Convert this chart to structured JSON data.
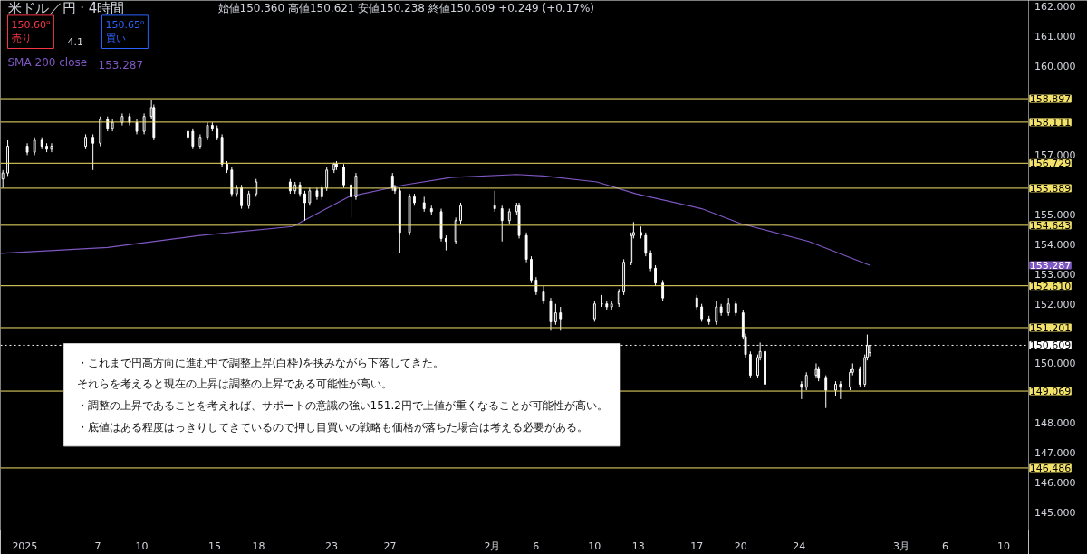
{
  "chart_data": {
    "type": "candlestick",
    "title": "米ドル／円 · 4時間",
    "subtitle": "始値150.360 高値150.621 安値150.238 終値150.609 +0.249 (+0.17%)",
    "color": "#ffffff",
    "legend": "top left",
    "grid": false,
    "xlim": [
      "2024-12-31T08:00",
      "2025-03-11T17:00"
    ],
    "ylim": [
      144.4,
      162.2
    ],
    "xticks": [
      {
        "value": "2025-01-02",
        "label": "2025"
      },
      {
        "value": "2025-01-07",
        "label": "7"
      },
      {
        "value": "2025-01-10",
        "label": "10"
      },
      {
        "value": "2025-01-15",
        "label": "15"
      },
      {
        "value": "2025-01-18",
        "label": "18"
      },
      {
        "value": "2025-01-23",
        "label": "23"
      },
      {
        "value": "2025-01-27",
        "label": "27"
      },
      {
        "value": "2025-02-03",
        "label": "2月"
      },
      {
        "value": "2025-02-06",
        "label": "6"
      },
      {
        "value": "2025-02-10",
        "label": "10"
      },
      {
        "value": "2025-02-13",
        "label": "13"
      },
      {
        "value": "2025-02-17",
        "label": "17"
      },
      {
        "value": "2025-02-20",
        "label": "20"
      },
      {
        "value": "2025-02-24",
        "label": "24"
      },
      {
        "value": "2025-03-03",
        "label": "3月"
      },
      {
        "value": "2025-03-06",
        "label": "6"
      },
      {
        "value": "2025-03-10",
        "label": "10"
      }
    ],
    "yticks": [
      {
        "value": 145,
        "label": "145.000"
      },
      {
        "value": 146,
        "label": "146.000"
      },
      {
        "value": 147,
        "label": "147.000"
      },
      {
        "value": 148,
        "label": "148.000"
      },
      {
        "value": 150,
        "label": "150.000"
      },
      {
        "value": 152,
        "label": "152.000"
      },
      {
        "value": 153,
        "label": "153.000"
      },
      {
        "value": 154,
        "label": "154.000"
      },
      {
        "value": 155,
        "label": "155.000"
      },
      {
        "value": 157,
        "label": "157.000"
      },
      {
        "value": 160,
        "label": "160.000"
      },
      {
        "value": 161,
        "label": "161.000"
      },
      {
        "value": 162,
        "label": "162.000"
      }
    ],
    "x": [
      "2024-12-31T12:00",
      "2024-12-31T20:00",
      "2025-01-02T04:00",
      "2025-01-02T16:00",
      "2025-01-03T04:00",
      "2025-01-03T12:00",
      "2025-01-03T20:00",
      "2025-01-06T04:00",
      "2025-01-06T16:00",
      "2025-01-07T04:00",
      "2025-01-07T16:00",
      "2025-01-08T00:00",
      "2025-01-08T16:00",
      "2025-01-09T04:00",
      "2025-01-09T16:00",
      "2025-01-10T04:00",
      "2025-01-10T16:00",
      "2025-01-10T20:00",
      "2025-01-13T04:00",
      "2025-01-13T12:00",
      "2025-01-14T00:00",
      "2025-01-14T12:00",
      "2025-01-14T20:00",
      "2025-01-15T04:00",
      "2025-01-15T12:00",
      "2025-01-15T20:00",
      "2025-01-16T04:00",
      "2025-01-16T12:00",
      "2025-01-16T20:00",
      "2025-01-17T08:00",
      "2025-01-17T20:00",
      "2025-01-20T04:00",
      "2025-01-20T12:00",
      "2025-01-20T20:00",
      "2025-01-21T04:00",
      "2025-01-21T12:00",
      "2025-01-22T00:00",
      "2025-01-22T08:00",
      "2025-01-22T16:00",
      "2025-01-23T04:00",
      "2025-01-23T08:00",
      "2025-01-23T20:00",
      "2025-01-24T08:00",
      "2025-01-24T16:00",
      "2025-01-27T04:00",
      "2025-01-27T08:00",
      "2025-01-27T16:00",
      "2025-01-28T08:00",
      "2025-01-28T16:00",
      "2025-01-29T08:00",
      "2025-01-29T20:00",
      "2025-01-30T12:00",
      "2025-01-30T20:00",
      "2025-01-31T12:00",
      "2025-01-31T20:00",
      "2025-02-03T04:00",
      "2025-02-03T16:00",
      "2025-02-04T04:00",
      "2025-02-04T16:00",
      "2025-02-04T20:00",
      "2025-02-05T08:00",
      "2025-02-05T16:00",
      "2025-02-06T00:00",
      "2025-02-06T12:00",
      "2025-02-07T00:00",
      "2025-02-07T08:00",
      "2025-02-07T16:00",
      "2025-02-10T00:00",
      "2025-02-10T12:00",
      "2025-02-10T20:00",
      "2025-02-11T04:00",
      "2025-02-11T16:00",
      "2025-02-12T00:00",
      "2025-02-12T12:00",
      "2025-02-12T16:00",
      "2025-02-13T04:00",
      "2025-02-13T12:00",
      "2025-02-13T20:00",
      "2025-02-14T04:00",
      "2025-02-14T16:00",
      "2025-02-17T00:00",
      "2025-02-17T08:00",
      "2025-02-17T20:00",
      "2025-02-18T08:00",
      "2025-02-18T16:00",
      "2025-02-19T04:00",
      "2025-02-19T16:00",
      "2025-02-20T04:00",
      "2025-02-20T08:00",
      "2025-02-20T16:00",
      "2025-02-21T04:00",
      "2025-02-21T08:00",
      "2025-02-21T16:00",
      "2025-02-24T04:00",
      "2025-02-24T12:00",
      "2025-02-25T04:00",
      "2025-02-25T08:00",
      "2025-02-25T20:00",
      "2025-02-26T12:00",
      "2025-02-26T20:00",
      "2025-02-27T12:00",
      "2025-02-27T16:00",
      "2025-02-28T04:00",
      "2025-02-28T12:00",
      "2025-02-28T16:00",
      "2025-02-28T20:00"
    ],
    "ohlc": [
      [
        156.2,
        156.5,
        155.9,
        156.4
      ],
      [
        156.4,
        157.5,
        156.3,
        157.3
      ],
      [
        157.3,
        157.4,
        157.0,
        157.1
      ],
      [
        157.1,
        157.6,
        157.0,
        157.5
      ],
      [
        157.5,
        157.6,
        157.2,
        157.3
      ],
      [
        157.3,
        157.4,
        157.1,
        157.2
      ],
      [
        157.2,
        157.4,
        157.1,
        157.3
      ],
      [
        157.3,
        157.7,
        157.2,
        157.6
      ],
      [
        157.6,
        157.7,
        156.5,
        157.4
      ],
      [
        157.4,
        158.3,
        157.3,
        158.2
      ],
      [
        158.2,
        158.3,
        157.8,
        157.9
      ],
      [
        157.9,
        158.2,
        157.8,
        158.1
      ],
      [
        158.1,
        158.4,
        158.0,
        158.3
      ],
      [
        158.3,
        158.4,
        158.0,
        158.1
      ],
      [
        158.1,
        158.2,
        157.7,
        157.8
      ],
      [
        157.8,
        158.4,
        157.7,
        158.3
      ],
      [
        158.3,
        158.84,
        158.2,
        158.6
      ],
      [
        158.6,
        158.7,
        157.5,
        157.6
      ],
      [
        157.6,
        157.9,
        157.5,
        157.8
      ],
      [
        157.8,
        157.9,
        157.2,
        157.3
      ],
      [
        157.3,
        157.7,
        157.2,
        157.6
      ],
      [
        157.6,
        158.1,
        157.5,
        158.0
      ],
      [
        158.0,
        158.1,
        157.8,
        157.9
      ],
      [
        157.9,
        158.0,
        157.5,
        157.6
      ],
      [
        157.6,
        157.7,
        156.6,
        156.7
      ],
      [
        156.7,
        156.8,
        156.4,
        156.5
      ],
      [
        156.5,
        156.6,
        155.6,
        155.7
      ],
      [
        155.7,
        156.0,
        155.6,
        155.9
      ],
      [
        155.9,
        156.0,
        155.2,
        155.3
      ],
      [
        155.3,
        155.8,
        155.2,
        155.7
      ],
      [
        155.7,
        156.2,
        155.6,
        156.1
      ],
      [
        156.1,
        156.2,
        155.7,
        155.8
      ],
      [
        155.8,
        156.1,
        155.7,
        156.0
      ],
      [
        156.0,
        156.1,
        155.6,
        155.7
      ],
      [
        155.7,
        155.8,
        154.8,
        155.4
      ],
      [
        155.4,
        155.9,
        155.3,
        155.8
      ],
      [
        155.8,
        155.9,
        155.5,
        155.6
      ],
      [
        155.6,
        156.0,
        155.5,
        155.9
      ],
      [
        155.9,
        156.6,
        155.8,
        156.5
      ],
      [
        156.5,
        156.75,
        156.4,
        156.7
      ],
      [
        156.7,
        156.8,
        156.5,
        156.6
      ],
      [
        156.6,
        156.7,
        155.9,
        156.0
      ],
      [
        156.0,
        156.1,
        154.9,
        155.6
      ],
      [
        155.6,
        156.4,
        155.5,
        156.3
      ],
      [
        156.3,
        156.4,
        155.8,
        155.9
      ],
      [
        155.9,
        156.0,
        155.7,
        155.8
      ],
      [
        155.8,
        155.9,
        153.7,
        154.4
      ],
      [
        154.4,
        155.7,
        154.3,
        155.6
      ],
      [
        155.6,
        155.7,
        155.3,
        155.4
      ],
      [
        155.4,
        155.6,
        155.1,
        155.2
      ],
      [
        155.2,
        155.3,
        155.0,
        155.1
      ],
      [
        155.1,
        155.2,
        154.1,
        154.2
      ],
      [
        154.2,
        154.3,
        153.8,
        154.1
      ],
      [
        154.1,
        154.9,
        154.0,
        154.8
      ],
      [
        154.8,
        155.4,
        154.7,
        155.3
      ],
      [
        155.3,
        155.8,
        155.1,
        155.2
      ],
      [
        155.2,
        155.3,
        154.1,
        154.8
      ],
      [
        154.8,
        155.2,
        154.7,
        155.1
      ],
      [
        155.1,
        155.4,
        155.0,
        155.3
      ],
      [
        155.3,
        155.4,
        154.2,
        154.3
      ],
      [
        154.3,
        154.4,
        153.4,
        153.5
      ],
      [
        153.5,
        153.6,
        152.7,
        152.8
      ],
      [
        152.8,
        152.9,
        152.3,
        152.4
      ],
      [
        152.4,
        152.6,
        152.0,
        152.1
      ],
      [
        152.1,
        152.2,
        151.1,
        151.4
      ],
      [
        151.4,
        152.0,
        151.3,
        151.7
      ],
      [
        151.7,
        151.9,
        151.1,
        151.5
      ],
      [
        151.5,
        152.1,
        151.4,
        152.0
      ],
      [
        152.0,
        152.3,
        151.9,
        152.0
      ],
      [
        152.0,
        152.1,
        151.8,
        151.9
      ],
      [
        151.9,
        152.1,
        151.8,
        152.0
      ],
      [
        152.0,
        152.5,
        151.9,
        152.4
      ],
      [
        152.4,
        153.5,
        152.3,
        153.4
      ],
      [
        153.4,
        154.4,
        153.3,
        154.3
      ],
      [
        154.3,
        154.75,
        154.2,
        154.4
      ],
      [
        154.4,
        154.6,
        154.2,
        154.3
      ],
      [
        154.3,
        154.4,
        153.6,
        153.7
      ],
      [
        153.7,
        153.8,
        153.1,
        153.2
      ],
      [
        153.2,
        153.3,
        152.6,
        152.7
      ],
      [
        152.7,
        152.8,
        152.1,
        152.2
      ],
      [
        152.2,
        152.3,
        151.8,
        151.9
      ],
      [
        151.9,
        152.0,
        151.4,
        151.5
      ],
      [
        151.5,
        151.6,
        151.3,
        151.4
      ],
      [
        151.4,
        152.1,
        151.3,
        151.9
      ],
      [
        151.9,
        152.0,
        151.6,
        151.7
      ],
      [
        151.7,
        152.2,
        151.6,
        152.0
      ],
      [
        152.0,
        152.1,
        151.6,
        151.7
      ],
      [
        151.7,
        151.8,
        150.8,
        150.9
      ],
      [
        150.9,
        151.0,
        150.2,
        150.3
      ],
      [
        150.3,
        150.4,
        149.5,
        149.6
      ],
      [
        149.6,
        150.3,
        149.5,
        150.2
      ],
      [
        150.2,
        150.7,
        150.1,
        150.4
      ],
      [
        150.4,
        150.5,
        149.2,
        149.3
      ],
      [
        149.3,
        149.4,
        148.8,
        149.2
      ],
      [
        149.2,
        149.7,
        149.1,
        149.6
      ],
      [
        149.6,
        150.0,
        149.5,
        149.8
      ],
      [
        149.8,
        149.9,
        149.4,
        149.5
      ],
      [
        149.5,
        149.6,
        148.5,
        149.1
      ],
      [
        149.1,
        149.4,
        148.9,
        149.3
      ],
      [
        149.3,
        149.4,
        148.8,
        149.2
      ],
      [
        149.2,
        149.8,
        149.1,
        149.7
      ],
      [
        149.7,
        150.0,
        149.6,
        149.8
      ],
      [
        149.8,
        149.9,
        149.2,
        149.3
      ],
      [
        149.3,
        150.3,
        149.2,
        150.2
      ],
      [
        150.2,
        150.97,
        150.1,
        150.6
      ],
      [
        150.36,
        150.621,
        150.238,
        150.609
      ]
    ],
    "series": [
      {
        "type": "line",
        "name": "SMA 200 close",
        "color": "#7e57c2",
        "x": [
          "2024-12-31T08:00",
          "2025-01-07T16:00",
          "2025-01-14T00:00",
          "2025-01-20T08:00",
          "2025-01-24T04:00",
          "2025-01-28T00:00",
          "2025-01-31T04:00",
          "2025-02-04T16:00",
          "2025-02-06T12:00",
          "2025-02-10T04:00",
          "2025-02-12T20:00",
          "2025-02-17T08:00",
          "2025-02-20T00:00",
          "2025-02-24T16:00",
          "2025-02-28T20:00"
        ],
        "values": [
          153.7,
          153.9,
          154.3,
          154.6,
          155.6,
          156.0,
          156.25,
          156.35,
          156.3,
          156.1,
          155.7,
          155.2,
          154.7,
          154.1,
          153.3
        ]
      }
    ],
    "ref_lines": [
      {
        "axis": "y",
        "value": 158.897,
        "label": "158.897",
        "color": "#f2e26b"
      },
      {
        "axis": "y",
        "value": 158.111,
        "label": "158.111",
        "color": "#f2e26b"
      },
      {
        "axis": "y",
        "value": 156.729,
        "label": "156.729",
        "color": "#f2e26b"
      },
      {
        "axis": "y",
        "value": 155.889,
        "label": "155.889",
        "color": "#f2e26b"
      },
      {
        "axis": "y",
        "value": 154.643,
        "label": "154.643",
        "color": "#f2e26b"
      },
      {
        "axis": "y",
        "value": 152.61,
        "label": "152.610",
        "color": "#f2e26b"
      },
      {
        "axis": "y",
        "value": 151.201,
        "label": "151.201",
        "color": "#f2e26b"
      },
      {
        "axis": "y",
        "value": 149.069,
        "label": "149.069",
        "color": "#f2e26b"
      },
      {
        "axis": "y",
        "value": 146.486,
        "label": "146.486",
        "color": "#f2e26b"
      },
      {
        "axis": "y",
        "value": 150.609,
        "label": "150.609",
        "color": "#ffffff",
        "line_style": "dotted"
      }
    ],
    "annotations": [
      "150.60⁹\n売り",
      "4.1",
      "150.65⁰\n買い",
      "153.287",
      "・これまで円高方向に進む中で調整上昇(白枠)を挟みながら下落してきた。",
      "それらを考えると現在の上昇は調整の上昇である可能性が高い。",
      "・調整の上昇であることを考えれば、サポートの意識の強い151.2円で上値が重くなることが可能性が高い。",
      "・底値はある程度はっきりしてきているので押し目買いの戦略も価格が落ちた場合は考える必要がある。"
    ]
  }
}
